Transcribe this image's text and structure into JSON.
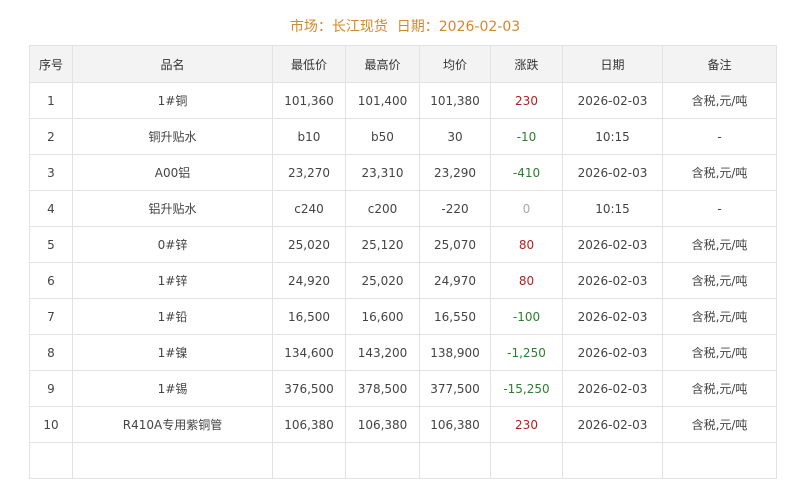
{
  "header": {
    "market_label": "市场：",
    "market": "长江现货",
    "date_label": "日期：",
    "date": "2026-02-03"
  },
  "columns": [
    "序号",
    "品名",
    "最低价",
    "最高价",
    "均价",
    "涨跌",
    "日期",
    "备注"
  ],
  "colors": {
    "up": "#b22222",
    "down": "#2e7d32",
    "flat": "#aaaaaa",
    "title": "#d4882c"
  },
  "rows": [
    {
      "no": "1",
      "name": "1#铜",
      "low": "101,360",
      "high": "101,400",
      "avg": "101,380",
      "change": "230",
      "dir": "up",
      "date": "2026-02-03",
      "note": "含税,元/吨"
    },
    {
      "no": "2",
      "name": "铜升贴水",
      "low": "b10",
      "high": "b50",
      "avg": "30",
      "change": "-10",
      "dir": "down",
      "date": "10:15",
      "note": "-"
    },
    {
      "no": "3",
      "name": "A00铝",
      "low": "23,270",
      "high": "23,310",
      "avg": "23,290",
      "change": "-410",
      "dir": "down",
      "date": "2026-02-03",
      "note": "含税,元/吨"
    },
    {
      "no": "4",
      "name": "铝升贴水",
      "low": "c240",
      "high": "c200",
      "avg": "-220",
      "change": "0",
      "dir": "flat",
      "date": "10:15",
      "note": "-"
    },
    {
      "no": "5",
      "name": "0#锌",
      "low": "25,020",
      "high": "25,120",
      "avg": "25,070",
      "change": "80",
      "dir": "up",
      "date": "2026-02-03",
      "note": "含税,元/吨"
    },
    {
      "no": "6",
      "name": "1#锌",
      "low": "24,920",
      "high": "25,020",
      "avg": "24,970",
      "change": "80",
      "dir": "up",
      "date": "2026-02-03",
      "note": "含税,元/吨"
    },
    {
      "no": "7",
      "name": "1#铅",
      "low": "16,500",
      "high": "16,600",
      "avg": "16,550",
      "change": "-100",
      "dir": "down",
      "date": "2026-02-03",
      "note": "含税,元/吨"
    },
    {
      "no": "8",
      "name": "1#镍",
      "low": "134,600",
      "high": "143,200",
      "avg": "138,900",
      "change": "-1,250",
      "dir": "down",
      "date": "2026-02-03",
      "note": "含税,元/吨"
    },
    {
      "no": "9",
      "name": "1#锡",
      "low": "376,500",
      "high": "378,500",
      "avg": "377,500",
      "change": "-15,250",
      "dir": "down",
      "date": "2026-02-03",
      "note": "含税,元/吨"
    },
    {
      "no": "10",
      "name": "R410A专用紫铜管",
      "low": "106,380",
      "high": "106,380",
      "avg": "106,380",
      "change": "230",
      "dir": "up",
      "date": "2026-02-03",
      "note": "含税,元/吨"
    }
  ]
}
